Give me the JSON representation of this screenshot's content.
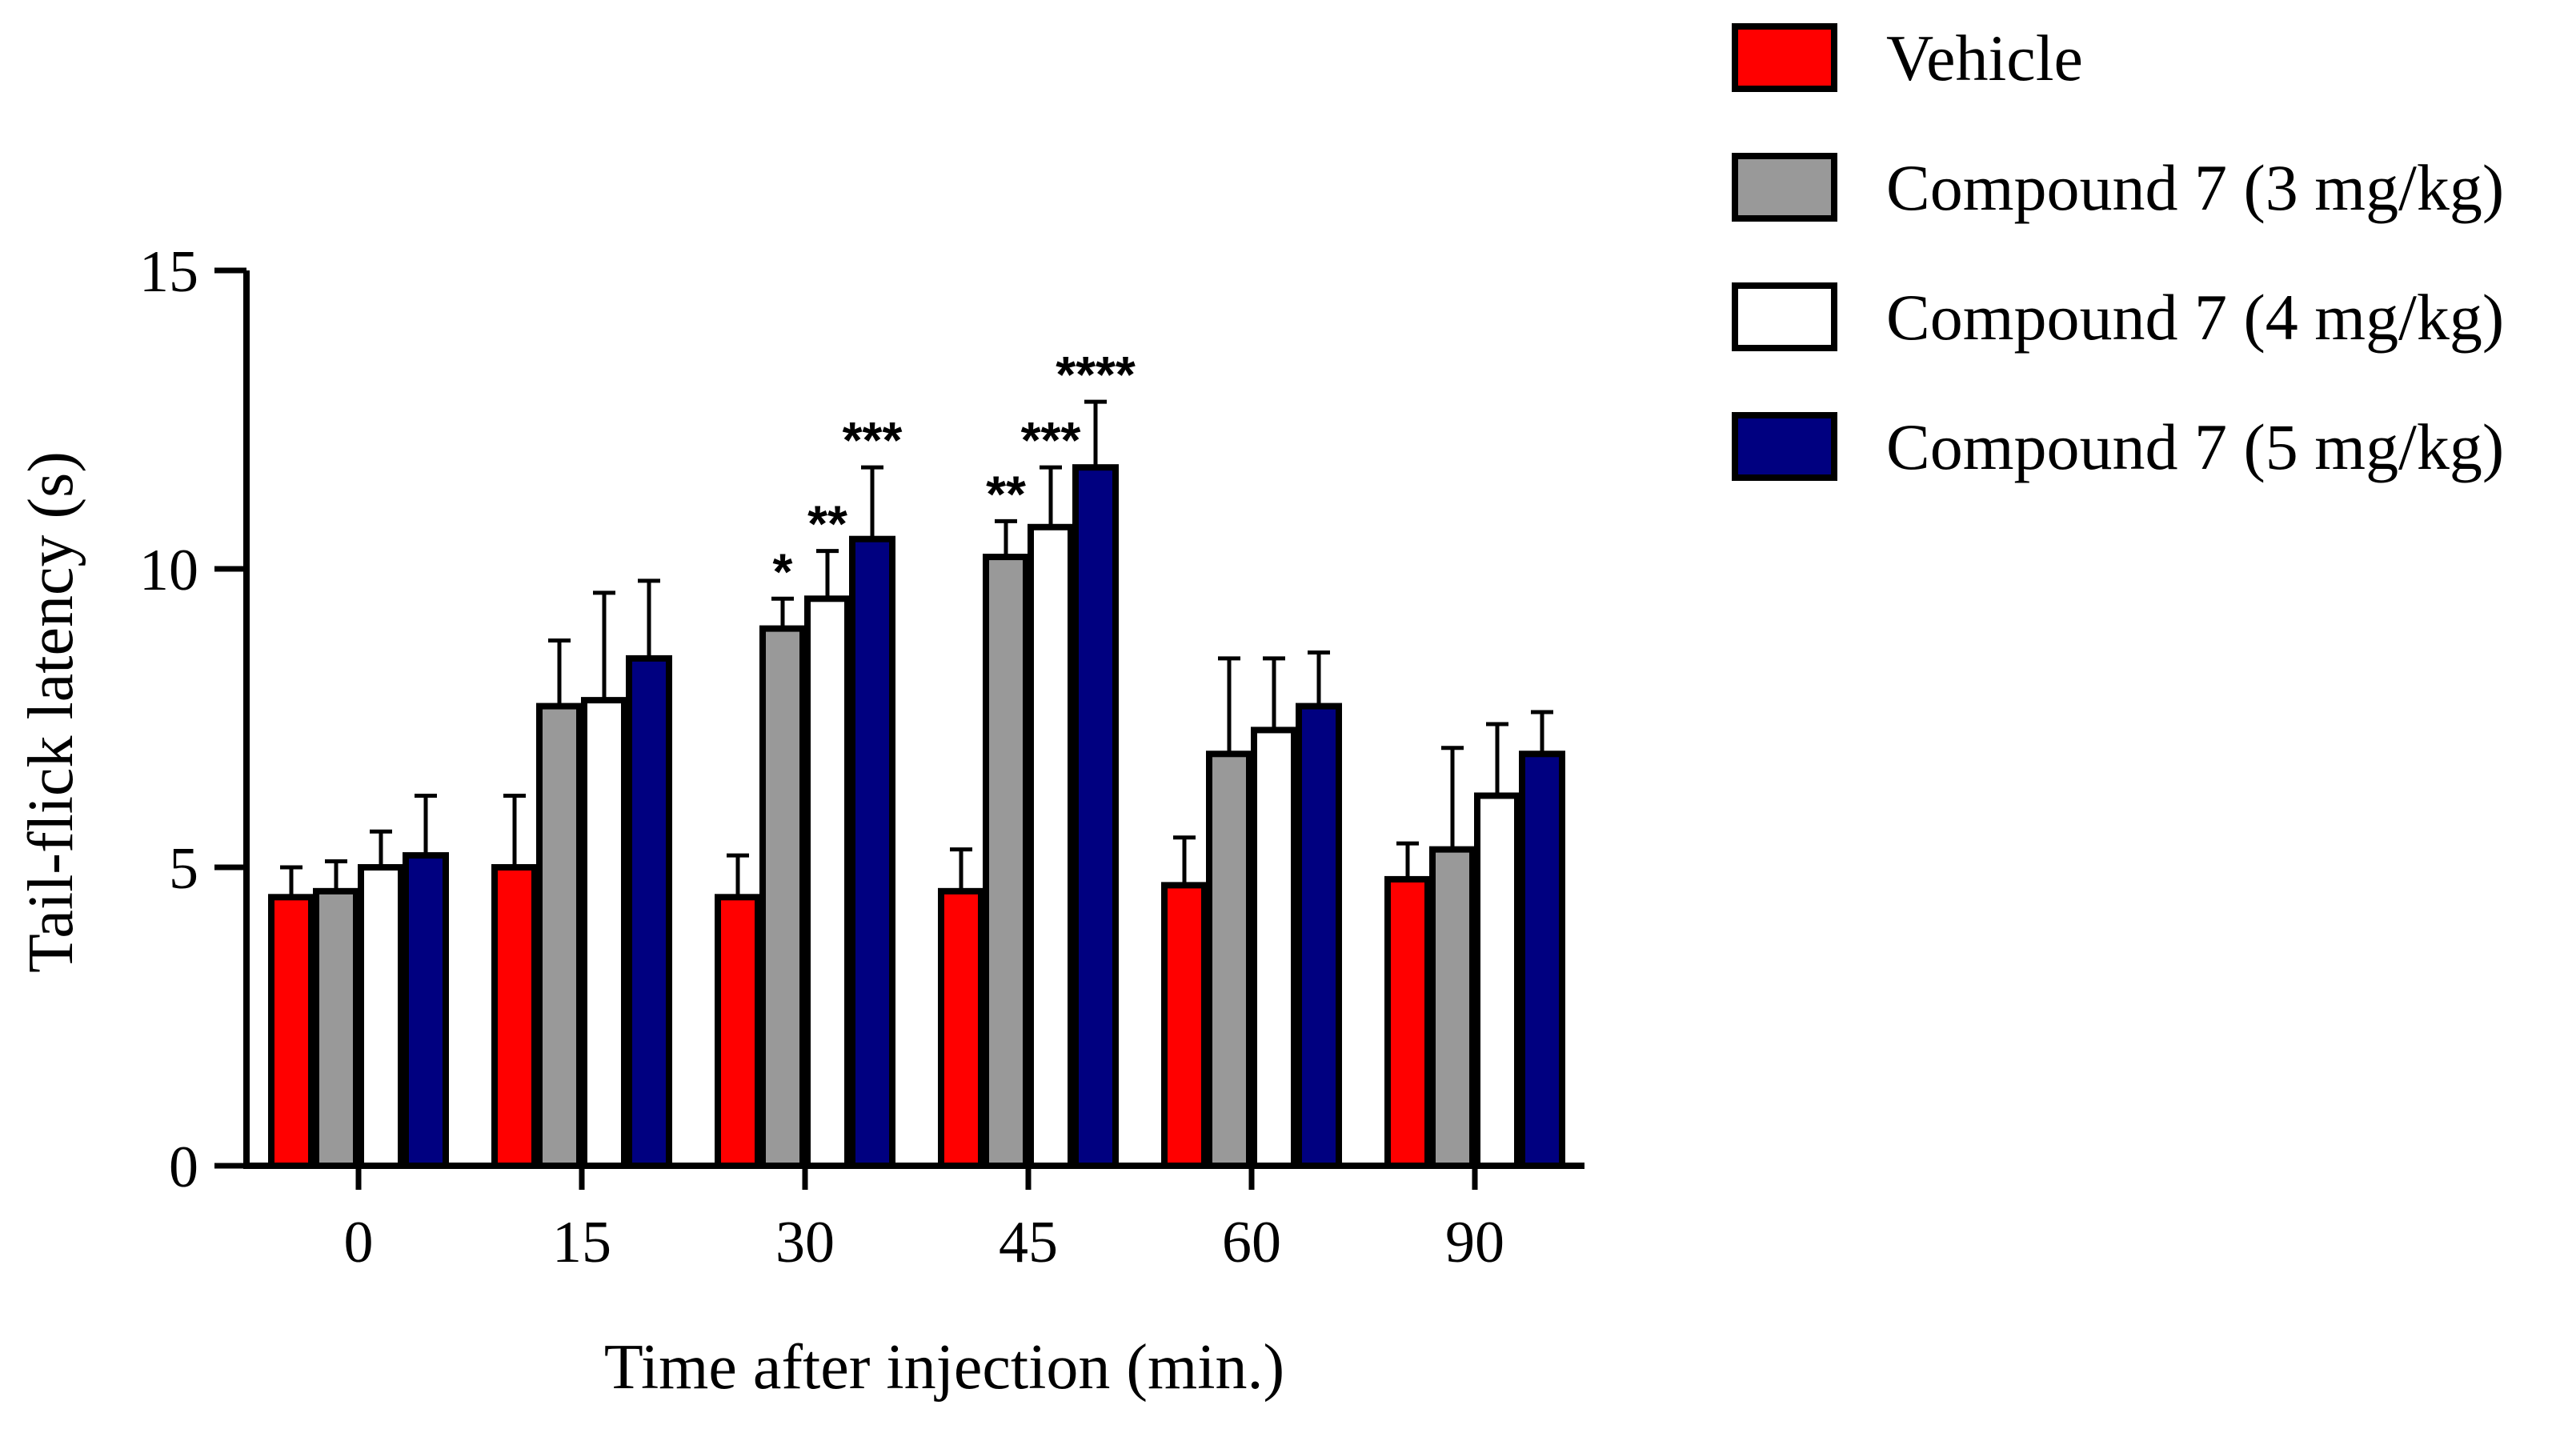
{
  "chart_data": {
    "type": "bar",
    "xlabel": "Time after injection (min.)",
    "ylabel": "Tail-flick latency (s)",
    "ylim": [
      0,
      15
    ],
    "yticks": [
      "0",
      "5",
      "10",
      "15"
    ],
    "categories": [
      "0",
      "15",
      "30",
      "45",
      "60",
      "90"
    ],
    "legend_position": "top-right",
    "series": [
      {
        "name": "Vehicle",
        "color": "#ff0000",
        "values": [
          4.5,
          5.0,
          4.5,
          4.6,
          4.7,
          4.8
        ],
        "errors": [
          0.5,
          1.2,
          0.7,
          0.7,
          0.8,
          0.6
        ],
        "significance": [
          "",
          "",
          "",
          "",
          "",
          ""
        ]
      },
      {
        "name": "Compound 7 (3 mg/kg)",
        "color": "#999999",
        "values": [
          4.6,
          7.7,
          9.0,
          10.2,
          6.9,
          5.3
        ],
        "errors": [
          0.5,
          1.1,
          0.5,
          0.6,
          1.6,
          1.7
        ],
        "significance": [
          "",
          "",
          "*",
          "**",
          "",
          ""
        ]
      },
      {
        "name": "Compound 7 (4 mg/kg)",
        "color": "#ffffff",
        "values": [
          5.0,
          7.8,
          9.5,
          10.7,
          7.3,
          6.2
        ],
        "errors": [
          0.6,
          1.8,
          0.8,
          1.0,
          1.2,
          1.2
        ],
        "significance": [
          "",
          "",
          "**",
          "***",
          "",
          ""
        ]
      },
      {
        "name": "Compound 7 (5 mg/kg)",
        "color": "#000080",
        "values": [
          5.2,
          8.5,
          10.5,
          11.7,
          7.7,
          6.9
        ],
        "errors": [
          1.0,
          1.3,
          1.2,
          1.1,
          0.9,
          0.7
        ],
        "significance": [
          "",
          "",
          "***",
          "****",
          "",
          ""
        ]
      }
    ]
  }
}
